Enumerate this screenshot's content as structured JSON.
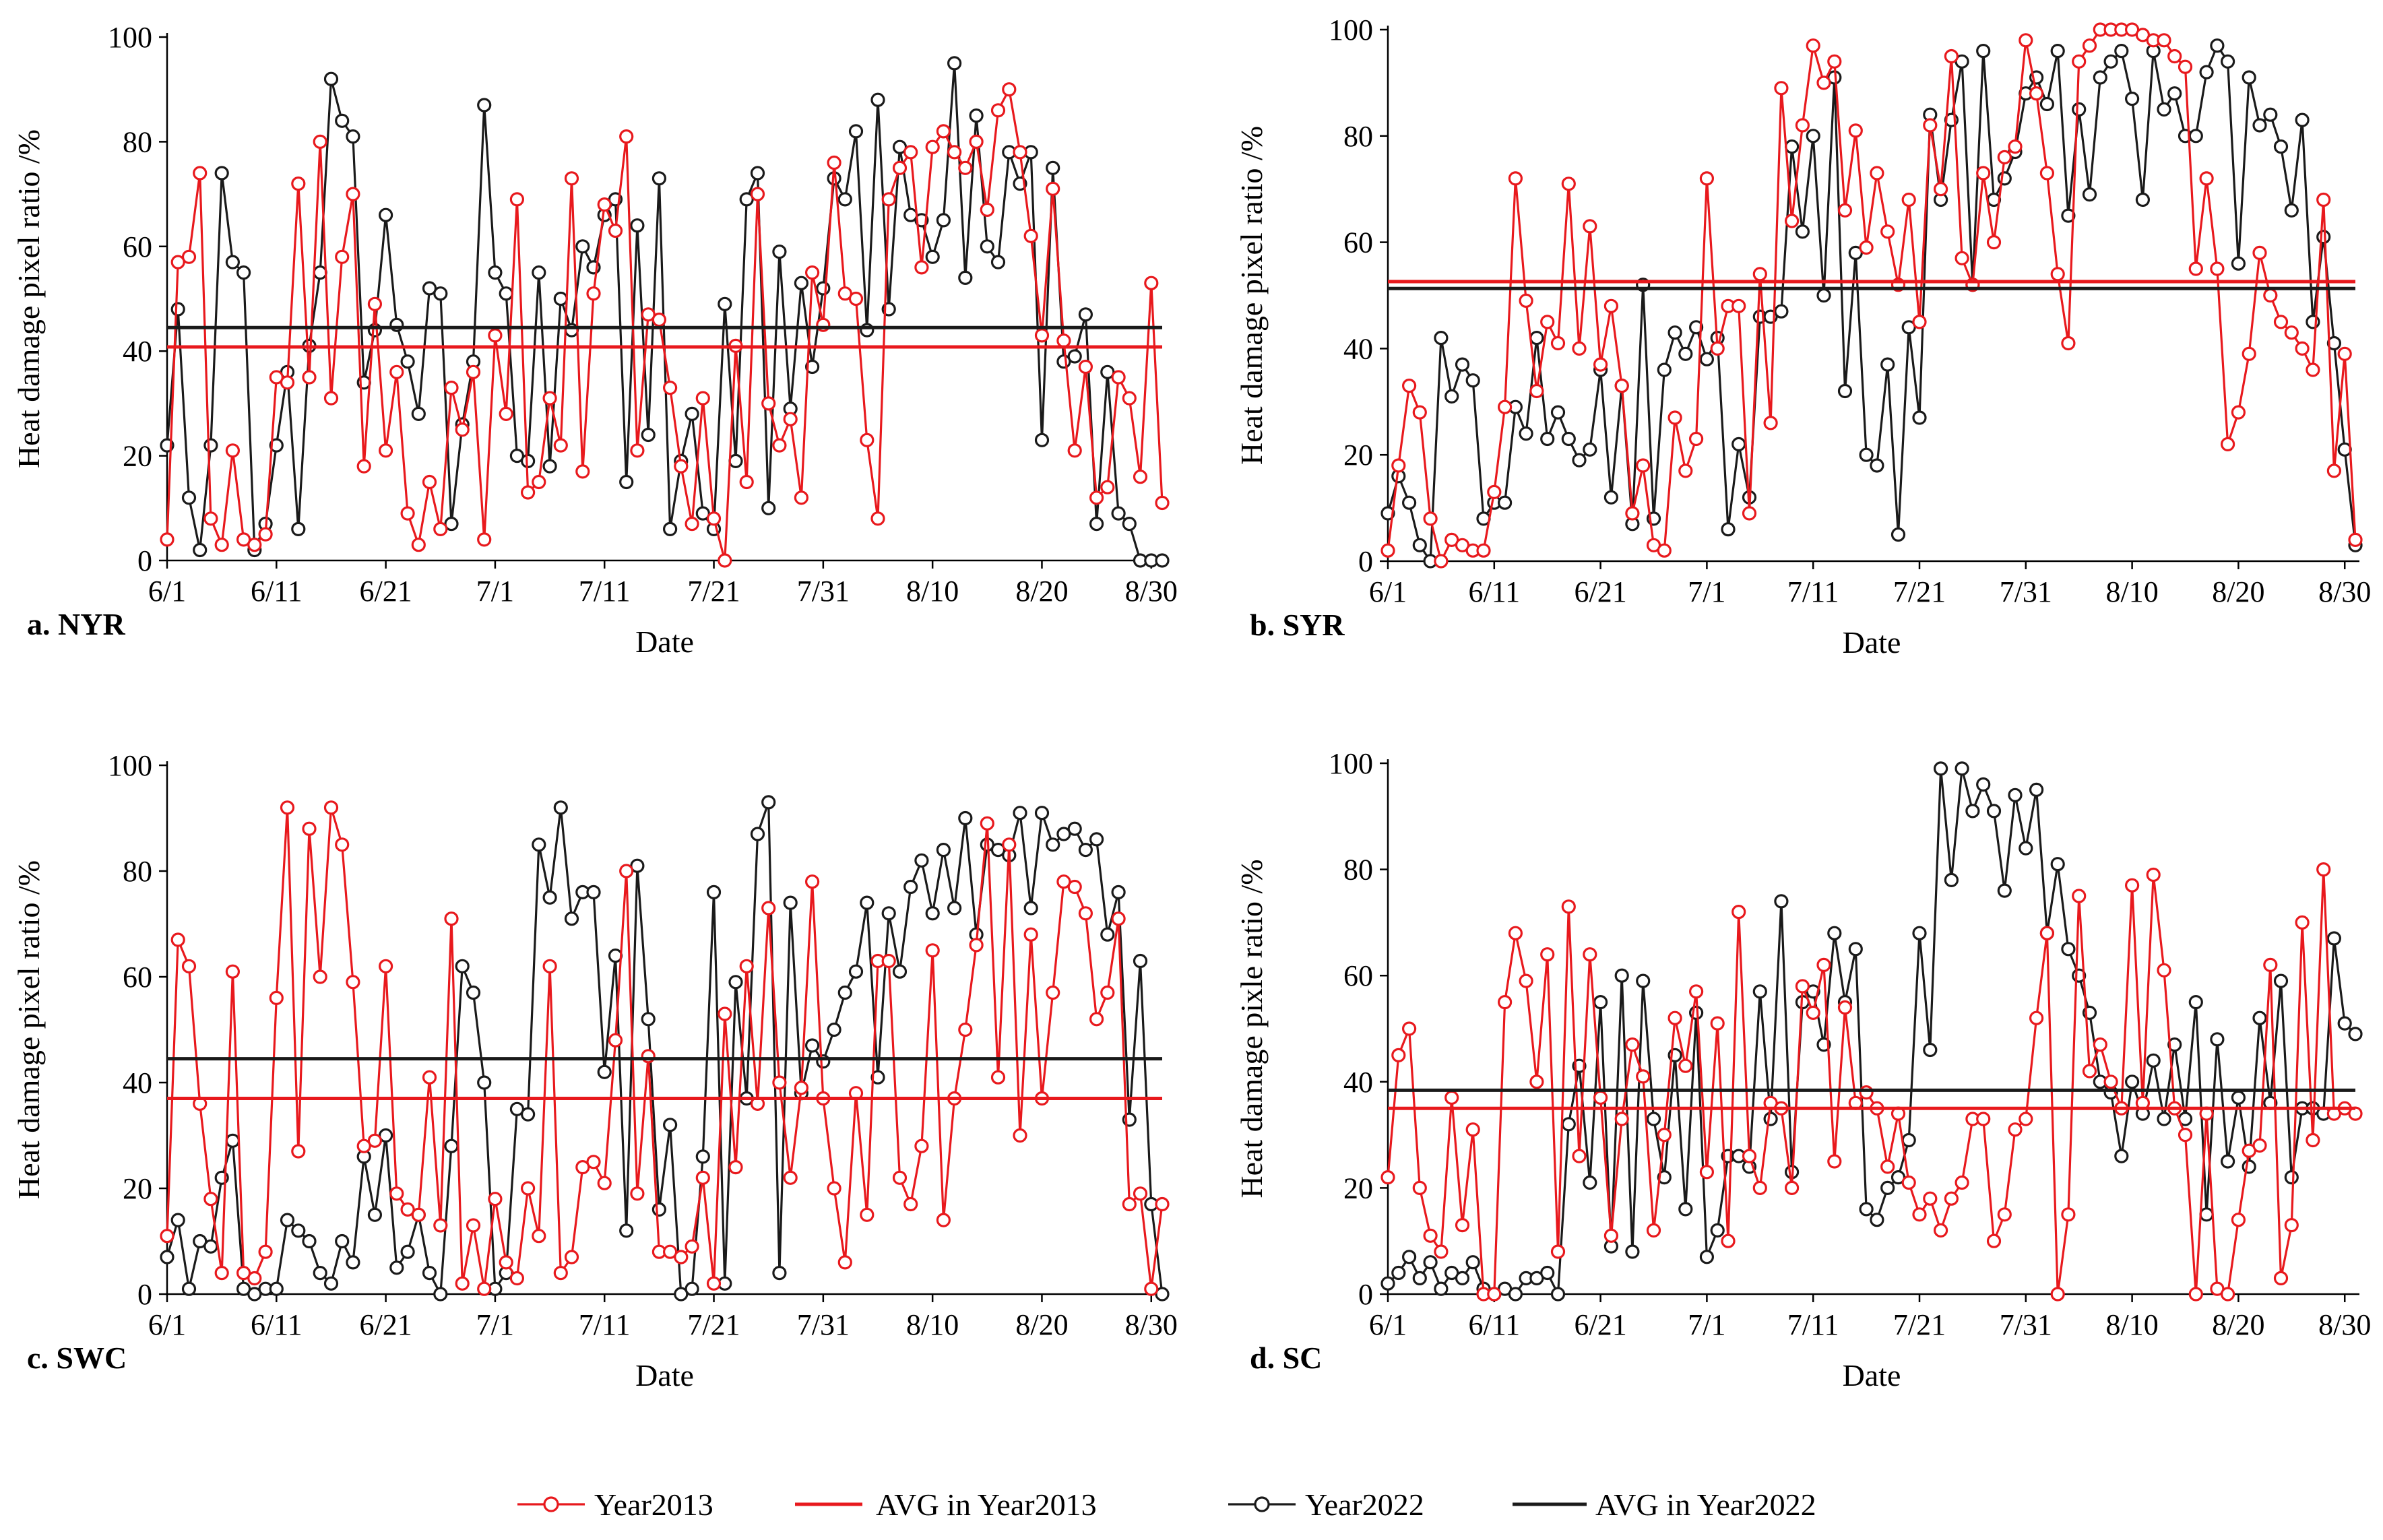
{
  "colors": {
    "year2013": "#e8191d",
    "year2022": "#1a1a1a",
    "avg2013": "#e8191d",
    "avg2022": "#1a1a1a"
  },
  "legend": {
    "items": [
      {
        "label": "Year2013",
        "kind": "marker-line",
        "color": "#e8191d"
      },
      {
        "label": "AVG in Year2013",
        "kind": "line",
        "color": "#e8191d"
      },
      {
        "label": "Year2022",
        "kind": "marker-line",
        "color": "#1a1a1a"
      },
      {
        "label": "AVG in Year2022",
        "kind": "line",
        "color": "#1a1a1a"
      }
    ]
  },
  "chart_data": [
    {
      "type": "line",
      "panel_label": "a. NYR",
      "xlabel": "Date",
      "ylabel": "Heat damage pixel ratio /%",
      "ylim": [
        0,
        100
      ],
      "yticks": [
        0,
        20,
        40,
        60,
        80,
        100
      ],
      "xtick_labels": [
        "6/1",
        "6/11",
        "6/21",
        "7/1",
        "7/11",
        "7/21",
        "7/31",
        "8/10",
        "8/20",
        "8/30"
      ],
      "x_start": "6/1",
      "days": 92,
      "series": [
        {
          "name": "Year2013",
          "color": "#e8191d",
          "values": [
            4,
            57,
            58,
            74,
            8,
            3,
            21,
            4,
            3,
            5,
            35,
            34,
            72,
            35,
            80,
            31,
            58,
            70,
            18,
            49,
            21,
            36,
            9,
            3,
            15,
            6,
            33,
            25,
            36,
            4,
            43,
            28,
            69,
            13,
            15,
            31,
            22,
            73,
            17,
            51,
            68,
            63,
            81,
            21,
            47,
            46,
            33,
            18,
            7,
            31,
            8,
            0,
            41,
            15,
            70,
            30,
            22,
            27,
            12,
            55,
            45,
            76,
            51,
            50,
            23,
            8,
            69,
            75,
            78,
            56,
            79,
            82,
            78,
            75,
            80,
            67,
            86,
            90,
            78,
            62,
            43,
            71,
            42,
            21,
            37,
            12,
            14,
            35,
            31,
            16,
            53,
            11
          ],
          "avg": 40.8
        },
        {
          "name": "Year2022",
          "color": "#1a1a1a",
          "values": [
            22,
            48,
            12,
            2,
            22,
            74,
            57,
            55,
            2,
            7,
            22,
            36,
            6,
            41,
            55,
            92,
            84,
            81,
            34,
            44,
            66,
            45,
            38,
            28,
            52,
            51,
            7,
            26,
            38,
            87,
            55,
            51,
            20,
            19,
            55,
            18,
            50,
            44,
            60,
            56,
            66,
            69,
            15,
            64,
            24,
            73,
            6,
            19,
            28,
            9,
            6,
            49,
            19,
            69,
            74,
            10,
            59,
            29,
            53,
            37,
            52,
            73,
            69,
            82,
            44,
            88,
            48,
            79,
            66,
            65,
            58,
            65,
            95,
            54,
            85,
            60,
            57,
            78,
            72,
            78,
            23,
            75,
            38,
            39,
            47,
            7,
            36,
            9,
            7,
            0,
            0,
            0
          ],
          "avg": 44.5
        }
      ]
    },
    {
      "type": "line",
      "panel_label": "b. SYR",
      "xlabel": "Date",
      "ylabel": "Heat damage pixel ratio /%",
      "ylim": [
        0,
        100
      ],
      "yticks": [
        0,
        20,
        40,
        60,
        80,
        100
      ],
      "xtick_labels": [
        "6/1",
        "6/11",
        "6/21",
        "7/1",
        "7/11",
        "7/21",
        "7/31",
        "8/10",
        "8/20",
        "8/30"
      ],
      "x_start": "6/1",
      "days": 92,
      "series": [
        {
          "name": "Year2013",
          "color": "#e8191d",
          "values": [
            2,
            18,
            33,
            28,
            8,
            0,
            4,
            3,
            2,
            2,
            13,
            29,
            72,
            49,
            32,
            45,
            41,
            71,
            40,
            63,
            37,
            48,
            33,
            9,
            18,
            3,
            2,
            27,
            17,
            23,
            72,
            40,
            48,
            48,
            9,
            54,
            26,
            89,
            64,
            82,
            97,
            90,
            94,
            66,
            81,
            59,
            73,
            62,
            52,
            68,
            45,
            82,
            70,
            95,
            57,
            52,
            73,
            60,
            76,
            78,
            98,
            88,
            73,
            54,
            41,
            94,
            97,
            100,
            100,
            100,
            100,
            99,
            98,
            98,
            95,
            93,
            55,
            72,
            55,
            22,
            28,
            39,
            58,
            50,
            45,
            43,
            40,
            36,
            68,
            17,
            39,
            4
          ],
          "avg": 52.6
        },
        {
          "name": "Year2022",
          "color": "#1a1a1a",
          "values": [
            9,
            16,
            11,
            3,
            0,
            42,
            31,
            37,
            34,
            8,
            11,
            11,
            29,
            24,
            42,
            23,
            28,
            23,
            19,
            21,
            36,
            12,
            33,
            7,
            52,
            8,
            36,
            43,
            39,
            44,
            38,
            42,
            6,
            22,
            12,
            46,
            46,
            47,
            78,
            62,
            80,
            50,
            91,
            32,
            58,
            20,
            18,
            37,
            5,
            44,
            27,
            84,
            68,
            83,
            94,
            52,
            96,
            68,
            72,
            77,
            88,
            91,
            86,
            96,
            65,
            85,
            69,
            91,
            94,
            96,
            87,
            68,
            96,
            85,
            88,
            80,
            80,
            92,
            97,
            94,
            56,
            91,
            82,
            84,
            78,
            66,
            83,
            45,
            61,
            41,
            21,
            3
          ],
          "avg": 51.3
        }
      ]
    },
    {
      "type": "line",
      "panel_label": "c. SWC",
      "xlabel": "Date",
      "ylabel": "Heat damage pixel ratio /%",
      "ylim": [
        0,
        100
      ],
      "yticks": [
        0,
        20,
        40,
        60,
        80,
        100
      ],
      "xtick_labels": [
        "6/1",
        "6/11",
        "6/21",
        "7/1",
        "7/11",
        "7/21",
        "7/31",
        "8/10",
        "8/20",
        "8/30"
      ],
      "x_start": "6/1",
      "days": 92,
      "series": [
        {
          "name": "Year2013",
          "color": "#e8191d",
          "values": [
            11,
            67,
            62,
            36,
            18,
            4,
            61,
            4,
            3,
            8,
            56,
            92,
            27,
            88,
            60,
            92,
            85,
            59,
            28,
            29,
            62,
            19,
            16,
            15,
            41,
            13,
            71,
            2,
            13,
            1,
            18,
            6,
            3,
            20,
            11,
            62,
            4,
            7,
            24,
            25,
            21,
            48,
            80,
            19,
            45,
            8,
            8,
            7,
            9,
            22,
            2,
            53,
            24,
            62,
            36,
            73,
            40,
            22,
            39,
            78,
            37,
            20,
            6,
            38,
            15,
            63,
            63,
            22,
            17,
            28,
            65,
            14,
            37,
            50,
            66,
            89,
            41,
            85,
            30,
            68,
            37,
            57,
            78,
            77,
            72,
            52,
            57,
            71,
            17,
            19,
            1,
            17
          ],
          "avg": 37.0
        },
        {
          "name": "Year2022",
          "color": "#1a1a1a",
          "values": [
            7,
            14,
            1,
            10,
            9,
            22,
            29,
            1,
            0,
            1,
            1,
            14,
            12,
            10,
            4,
            2,
            10,
            6,
            26,
            15,
            30,
            5,
            8,
            15,
            4,
            0,
            28,
            62,
            57,
            40,
            1,
            4,
            35,
            34,
            85,
            75,
            92,
            71,
            76,
            76,
            42,
            64,
            12,
            81,
            52,
            16,
            32,
            0,
            1,
            26,
            76,
            2,
            59,
            37,
            87,
            93,
            4,
            74,
            38,
            47,
            44,
            50,
            57,
            61,
            74,
            41,
            72,
            61,
            77,
            82,
            72,
            84,
            73,
            90,
            68,
            85,
            84,
            83,
            91,
            73,
            91,
            85,
            87,
            88,
            84,
            86,
            68,
            76,
            33,
            63,
            17,
            0
          ],
          "avg": 44.5
        }
      ]
    },
    {
      "type": "line",
      "panel_label": "d. SC",
      "xlabel": "Date",
      "ylabel": "Heat damage pixle ratio /%",
      "ylim": [
        0,
        100
      ],
      "yticks": [
        0,
        20,
        40,
        60,
        80,
        100
      ],
      "xtick_labels": [
        "6/1",
        "6/11",
        "6/21",
        "7/1",
        "7/11",
        "7/21",
        "7/31",
        "8/10",
        "8/20",
        "8/30"
      ],
      "x_start": "6/1",
      "days": 92,
      "series": [
        {
          "name": "Year2013",
          "color": "#e8191d",
          "values": [
            22,
            45,
            50,
            20,
            11,
            8,
            37,
            13,
            31,
            0,
            0,
            55,
            68,
            59,
            40,
            64,
            8,
            73,
            26,
            64,
            37,
            11,
            33,
            47,
            41,
            12,
            30,
            52,
            43,
            57,
            23,
            51,
            10,
            72,
            26,
            20,
            36,
            35,
            20,
            58,
            53,
            62,
            25,
            54,
            36,
            38,
            35,
            24,
            34,
            21,
            15,
            18,
            12,
            18,
            21,
            33,
            33,
            10,
            15,
            31,
            33,
            52,
            68,
            0,
            15,
            75,
            42,
            47,
            40,
            35,
            77,
            36,
            79,
            61,
            35,
            30,
            0,
            34,
            1,
            0,
            14,
            27,
            28,
            62,
            3,
            13,
            70,
            29,
            80,
            34,
            35,
            34
          ],
          "avg": 35.0
        },
        {
          "name": "Year2022",
          "color": "#1a1a1a",
          "values": [
            2,
            4,
            7,
            3,
            6,
            1,
            4,
            3,
            6,
            1,
            0,
            1,
            0,
            3,
            3,
            4,
            0,
            32,
            43,
            21,
            55,
            9,
            60,
            8,
            59,
            33,
            22,
            45,
            16,
            53,
            7,
            12,
            26,
            26,
            24,
            57,
            33,
            74,
            23,
            55,
            57,
            47,
            68,
            55,
            65,
            16,
            14,
            20,
            22,
            29,
            68,
            46,
            99,
            78,
            99,
            91,
            96,
            91,
            76,
            94,
            84,
            95,
            68,
            81,
            65,
            60,
            53,
            40,
            38,
            26,
            40,
            34,
            44,
            33,
            47,
            33,
            55,
            15,
            48,
            25,
            37,
            24,
            52,
            36,
            59,
            22,
            35,
            35,
            34,
            67,
            51,
            49
          ],
          "avg": 38.4
        }
      ]
    }
  ]
}
